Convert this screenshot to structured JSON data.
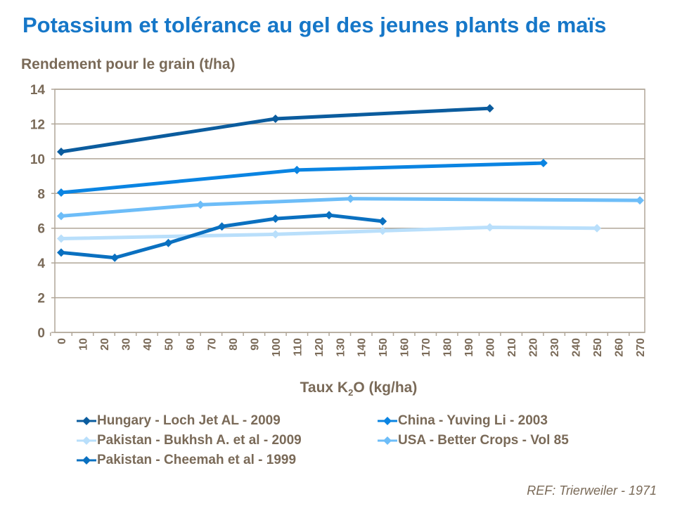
{
  "chart_data": {
    "type": "line",
    "title": "Potassium et tolérance au gel des jeunes plants de maïs",
    "ylabel": "Rendement pour le grain (t/ha)",
    "xlabel_parts": [
      "Taux K",
      "2",
      "O (kg/ha)"
    ],
    "xlim": [
      0,
      270
    ],
    "ylim": [
      0,
      14
    ],
    "xticks": [
      0,
      10,
      20,
      30,
      40,
      50,
      60,
      70,
      80,
      90,
      100,
      110,
      120,
      130,
      140,
      150,
      160,
      170,
      180,
      190,
      200,
      210,
      220,
      230,
      240,
      250,
      260,
      270
    ],
    "yticks": [
      0,
      2,
      4,
      6,
      8,
      10,
      12,
      14
    ],
    "grid": true,
    "legend_position": "bottom",
    "series": [
      {
        "name": "Hungary - Loch Jet AL - 2009",
        "color": "#0b5c9e",
        "points": [
          [
            0,
            10.4
          ],
          [
            100,
            12.3
          ],
          [
            200,
            12.9
          ]
        ]
      },
      {
        "name": "China - Yuving Li - 2003",
        "color": "#0a84e2",
        "points": [
          [
            0,
            8.05
          ],
          [
            110,
            9.35
          ],
          [
            225,
            9.75
          ]
        ]
      },
      {
        "name": "Pakistan - Bukhsh A. et al - 2009",
        "color": "#b9dffb",
        "points": [
          [
            0,
            5.4
          ],
          [
            100,
            5.65
          ],
          [
            150,
            5.85
          ],
          [
            200,
            6.05
          ],
          [
            250,
            6.0
          ]
        ]
      },
      {
        "name": "USA - Better Crops - Vol 85",
        "color": "#6dbdf8",
        "points": [
          [
            0,
            6.7
          ],
          [
            65,
            7.35
          ],
          [
            135,
            7.7
          ],
          [
            270,
            7.6
          ]
        ]
      },
      {
        "name": "Pakistan - Cheemah et al - 1999",
        "color": "#0a70c0",
        "points": [
          [
            0,
            4.6
          ],
          [
            25,
            4.3
          ],
          [
            50,
            5.15
          ],
          [
            75,
            6.1
          ],
          [
            100,
            6.55
          ],
          [
            125,
            6.75
          ],
          [
            150,
            6.4
          ]
        ]
      }
    ]
  },
  "reference": "REF: Trierweiler - 1971"
}
